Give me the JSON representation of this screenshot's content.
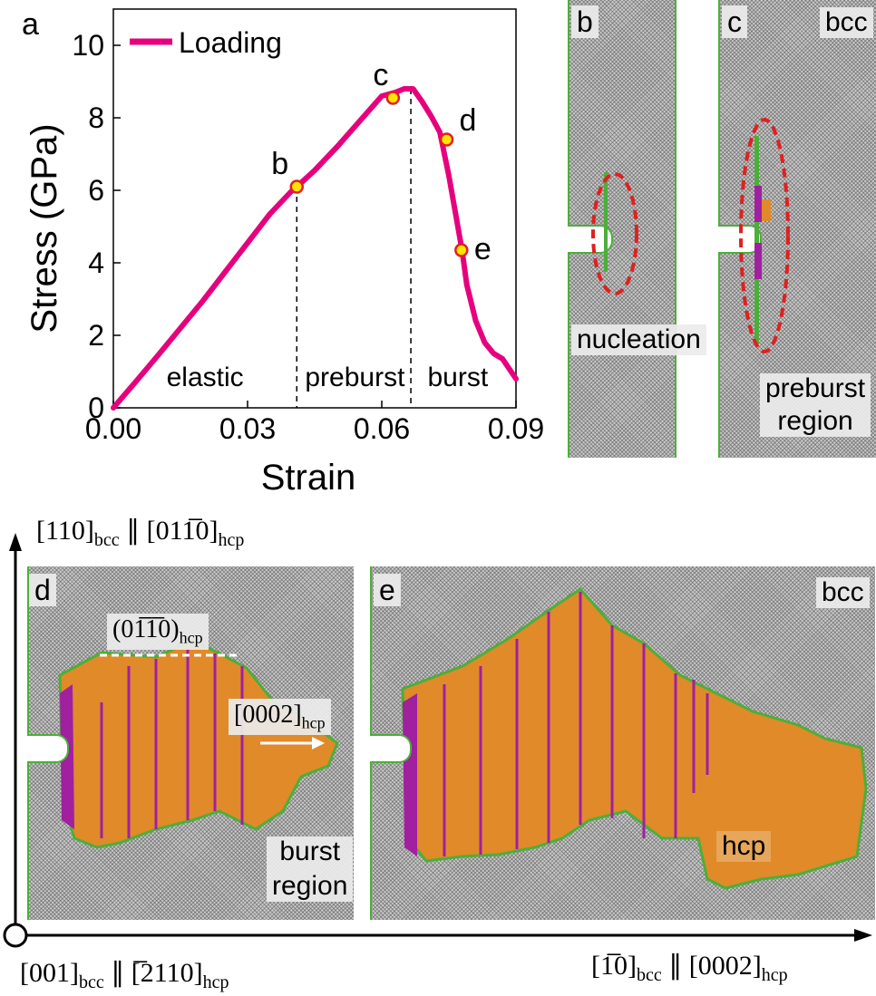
{
  "chart_data": {
    "type": "line",
    "panel_label": "a",
    "xlabel": "Strain",
    "ylabel": "Stress (GPa)",
    "xlim": [
      0,
      0.09
    ],
    "ylim": [
      0,
      11
    ],
    "xticks": [
      "0.00",
      "0.03",
      "0.06",
      "0.09"
    ],
    "yticks": [
      "0",
      "2",
      "4",
      "6",
      "8",
      "10"
    ],
    "legend": "top-left",
    "series": [
      {
        "name": "Loading",
        "color": "#e6007e",
        "x": [
          0,
          0.005,
          0.01,
          0.015,
          0.02,
          0.025,
          0.03,
          0.035,
          0.04,
          0.041,
          0.045,
          0.05,
          0.055,
          0.06,
          0.063,
          0.065,
          0.067,
          0.069,
          0.071,
          0.073,
          0.075,
          0.077,
          0.078,
          0.079,
          0.081,
          0.083,
          0.085,
          0.087,
          0.09
        ],
        "y": [
          0,
          0.72,
          1.45,
          2.2,
          2.95,
          3.75,
          4.55,
          5.35,
          6.0,
          6.1,
          6.55,
          7.2,
          7.9,
          8.6,
          8.7,
          8.8,
          8.8,
          8.45,
          8.05,
          7.6,
          6.4,
          5.0,
          4.3,
          3.4,
          2.4,
          1.8,
          1.5,
          1.35,
          0.8
        ]
      }
    ],
    "markers": [
      {
        "label": "b",
        "x": 0.041,
        "y": 6.1
      },
      {
        "label": "c",
        "x": 0.0625,
        "y": 8.55
      },
      {
        "label": "d",
        "x": 0.0745,
        "y": 7.4
      },
      {
        "label": "e",
        "x": 0.0778,
        "y": 4.35
      }
    ],
    "divider_strains": [
      0.041,
      0.0665
    ],
    "regions": [
      {
        "label": "elastic",
        "x": 0.0205
      },
      {
        "label": "preburst",
        "x": 0.054
      },
      {
        "label": "burst",
        "x": 0.077
      }
    ],
    "marker_color": "#ffe600"
  },
  "panels": {
    "b": {
      "letter": "b",
      "caption": "nucleation"
    },
    "c": {
      "letter": "c",
      "phase": "bcc",
      "caption_line1": "preburst",
      "caption_line2": "region"
    },
    "d": {
      "letter": "d",
      "plane_label": "(01̅1̅0)",
      "plane_sub": "hcp",
      "dir_label": "[0002]",
      "dir_sub": "hcp",
      "caption_line1": "burst",
      "caption_line2": "region"
    },
    "e": {
      "letter": "e",
      "phase": "bcc",
      "phase2": "hcp"
    }
  },
  "axes": {
    "vertical": {
      "left": "[110]",
      "left_sub": "bcc",
      "sep": " ∥ ",
      "right": "[011̅0]",
      "right_sub": "hcp"
    },
    "horizontal": {
      "left": "[1̅0]",
      "left_sub": "bcc",
      "sep": " ∥ ",
      "right": "[0002]",
      "right_sub": "hcp"
    },
    "origin": {
      "left": "[001]",
      "left_sub": "bcc",
      "sep": " ∥ ",
      "right": "[̅2110]",
      "right_sub": "hcp"
    }
  },
  "colors": {
    "hcp": "#e08a2a",
    "twin": "#a020a0",
    "boundary": "#4caf3a",
    "crack_ellipse": "#e02020"
  }
}
